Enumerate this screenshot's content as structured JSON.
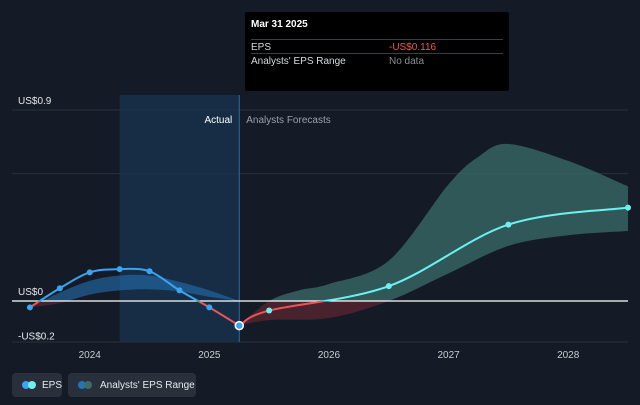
{
  "chart_data": {
    "type": "line",
    "x_unit": "year",
    "ylim": [
      -0.2,
      0.9
    ],
    "xlim": [
      2023.35,
      2028.5
    ],
    "y_labels": [
      {
        "text": "US$0.9",
        "value": 0.9
      },
      {
        "text": "US$0",
        "value": 0
      },
      {
        "text": "-US$0.2",
        "value": -0.2
      }
    ],
    "x_ticks": [
      {
        "label": "2024",
        "value": 2024
      },
      {
        "label": "2025",
        "value": 2025
      },
      {
        "label": "2026",
        "value": 2026
      },
      {
        "label": "2027",
        "value": 2027
      },
      {
        "label": "2028",
        "value": 2028
      }
    ],
    "sections": {
      "actual_label": "Actual",
      "forecast_label": "Analysts Forecasts",
      "divider_x": 2025.25
    },
    "highlight_band": [
      2024.25,
      2025.25
    ],
    "series": [
      {
        "name": "EPS",
        "kind": "actual",
        "points": [
          {
            "x": 2023.5,
            "y": -0.03
          },
          {
            "x": 2023.75,
            "y": 0.06
          },
          {
            "x": 2024.0,
            "y": 0.135
          },
          {
            "x": 2024.25,
            "y": 0.15
          },
          {
            "x": 2024.5,
            "y": 0.14
          },
          {
            "x": 2024.75,
            "y": 0.05
          },
          {
            "x": 2025.0,
            "y": -0.03
          },
          {
            "x": 2025.25,
            "y": -0.116
          }
        ]
      },
      {
        "name": "EPS",
        "kind": "forecast",
        "points": [
          {
            "x": 2025.25,
            "y": -0.116
          },
          {
            "x": 2025.5,
            "y": -0.045
          },
          {
            "x": 2026.5,
            "y": 0.07
          },
          {
            "x": 2027.5,
            "y": 0.36
          },
          {
            "x": 2028.5,
            "y": 0.44
          }
        ]
      }
    ],
    "actual_range_band": {
      "upper": [
        [
          2023.5,
          -0.03
        ],
        [
          2023.75,
          0.04
        ],
        [
          2024.0,
          0.095
        ],
        [
          2024.25,
          0.12
        ],
        [
          2024.5,
          0.12
        ],
        [
          2024.75,
          0.09
        ],
        [
          2025.0,
          0.05
        ],
        [
          2025.25,
          0.0
        ]
      ],
      "lower": [
        [
          2023.5,
          -0.03
        ],
        [
          2023.75,
          -0.01
        ],
        [
          2024.0,
          0.03
        ],
        [
          2024.25,
          0.05
        ],
        [
          2024.5,
          0.055
        ],
        [
          2024.75,
          0.045
        ],
        [
          2025.0,
          0.02
        ],
        [
          2025.25,
          0.0
        ]
      ]
    },
    "forecast_range_band": {
      "upper": [
        [
          2025.25,
          -0.116
        ],
        [
          2025.5,
          0.0
        ],
        [
          2025.75,
          0.05
        ],
        [
          2026.0,
          0.08
        ],
        [
          2026.5,
          0.19
        ],
        [
          2027.0,
          0.55
        ],
        [
          2027.25,
          0.68
        ],
        [
          2027.5,
          0.74
        ],
        [
          2028.0,
          0.66
        ],
        [
          2028.5,
          0.54
        ]
      ],
      "lower": [
        [
          2025.25,
          -0.116
        ],
        [
          2025.5,
          -0.09
        ],
        [
          2026.0,
          -0.08
        ],
        [
          2026.5,
          0.0
        ],
        [
          2027.0,
          0.13
        ],
        [
          2027.5,
          0.26
        ],
        [
          2028.0,
          0.31
        ],
        [
          2028.5,
          0.33
        ]
      ]
    },
    "colors": {
      "background": "#151b26",
      "eps_positive": "#3ba4f0",
      "eps_negative": "#e8545a",
      "forecast_line": "#6ef0f0",
      "actual_band": "#2574b8",
      "forecast_band": "#3a6e6a",
      "negative_band": "#5a2530",
      "zero_line": "#ffffff",
      "grid": "#2a313c",
      "highlight_band": "#16324d",
      "divider": "#2e6f9e"
    }
  },
  "tooltip": {
    "date": "Mar 31 2025",
    "rows": [
      {
        "label": "EPS",
        "value": "-US$0.116"
      },
      {
        "label": "Analysts' EPS Range",
        "value": "No data"
      }
    ]
  },
  "legend": [
    {
      "label": "EPS",
      "dot_colors": [
        "#3ba4f0",
        "#6ef0f0"
      ]
    },
    {
      "label": "Analysts' EPS Range",
      "dot_colors": [
        "#2574b8",
        "#3a6e6a"
      ]
    }
  ]
}
